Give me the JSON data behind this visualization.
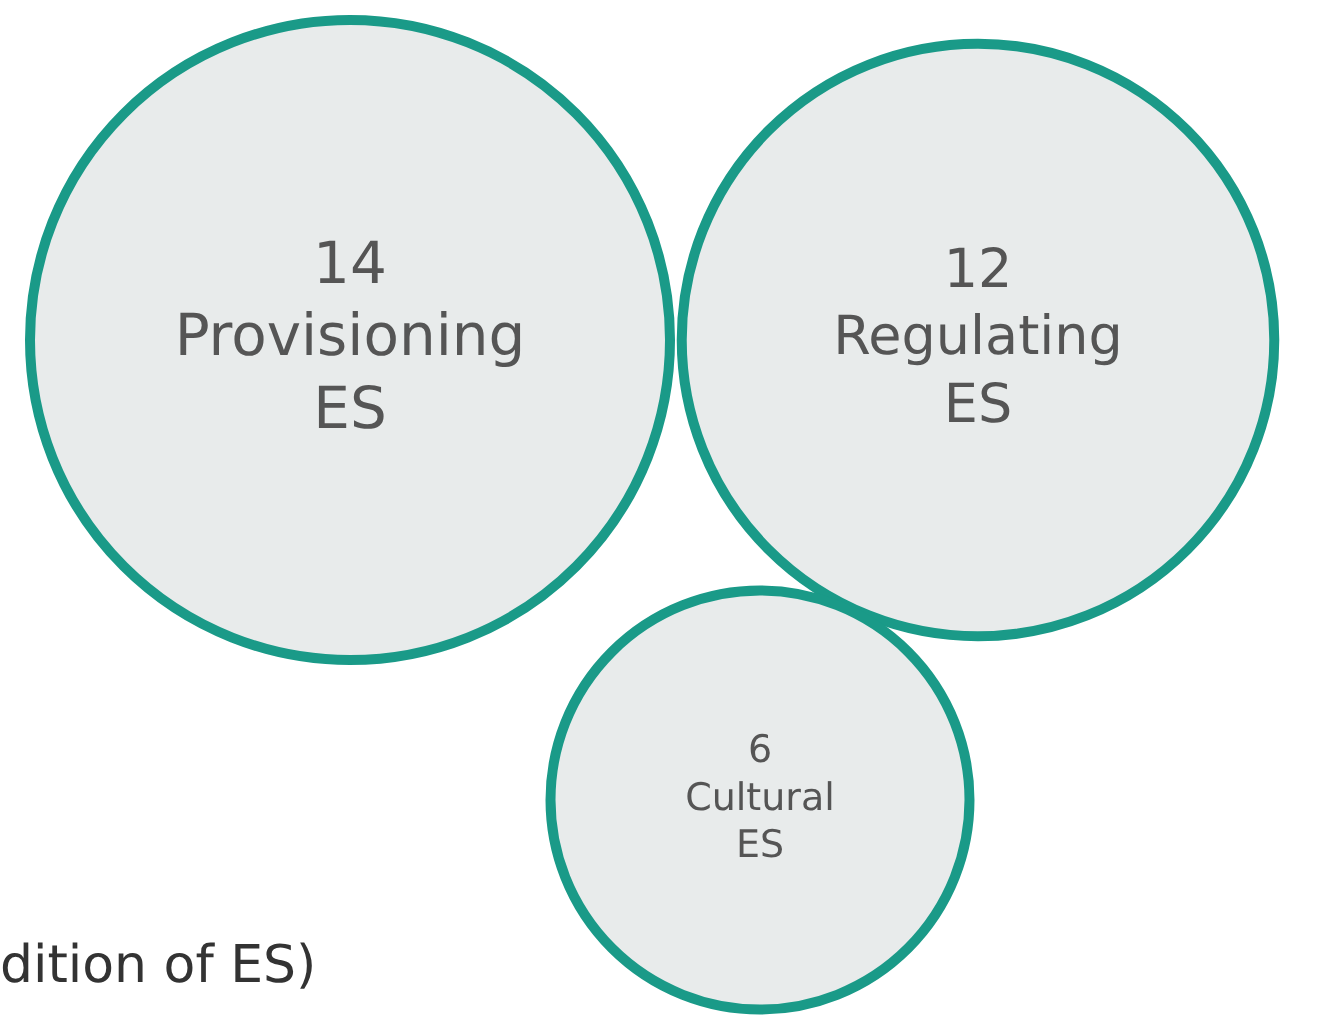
{
  "chart_data": {
    "type": "other",
    "categories": [
      "Provisioning ES",
      "Regulating ES",
      "Cultural ES"
    ],
    "values": [
      14,
      12,
      6
    ],
    "color": "#1a9a88",
    "data_labels": true,
    "annotations": [
      "dition of ES)"
    ]
  }
}
